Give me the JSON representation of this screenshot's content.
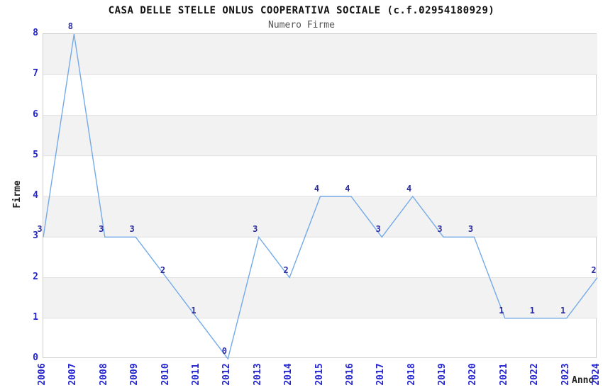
{
  "chart_data": {
    "type": "line",
    "title": "CASA DELLE STELLE ONLUS COOPERATIVA SOCIALE (c.f.02954180929)",
    "subtitle": "Numero Firme",
    "xlabel": "Anno",
    "ylabel": "Firme",
    "categories": [
      "2006",
      "2007",
      "2008",
      "2009",
      "2010",
      "2011",
      "2012",
      "2013",
      "2014",
      "2015",
      "2016",
      "2017",
      "2018",
      "2019",
      "2020",
      "2021",
      "2022",
      "2023",
      "2024"
    ],
    "values": [
      3,
      8,
      3,
      3,
      2,
      1,
      0,
      3,
      2,
      4,
      4,
      3,
      4,
      3,
      3,
      1,
      1,
      1,
      2
    ],
    "ylim": [
      0,
      8
    ],
    "yticks": [
      0,
      1,
      2,
      3,
      4,
      5,
      6,
      7,
      8
    ],
    "data_labels_visible": true,
    "grid": "horizontal-bands-alternating",
    "legend": "none",
    "colors": {
      "background": "#ffffff",
      "line": "#74aae8",
      "data_label": "#2b2ba0",
      "tick_label": "#2424d0",
      "band_fill": "#f2f2f2",
      "grid_line": "#e1e1e1",
      "plot_border": "#cfcfcf",
      "title": "#111111",
      "subtitle": "#555555",
      "axis_title": "#222222"
    }
  }
}
